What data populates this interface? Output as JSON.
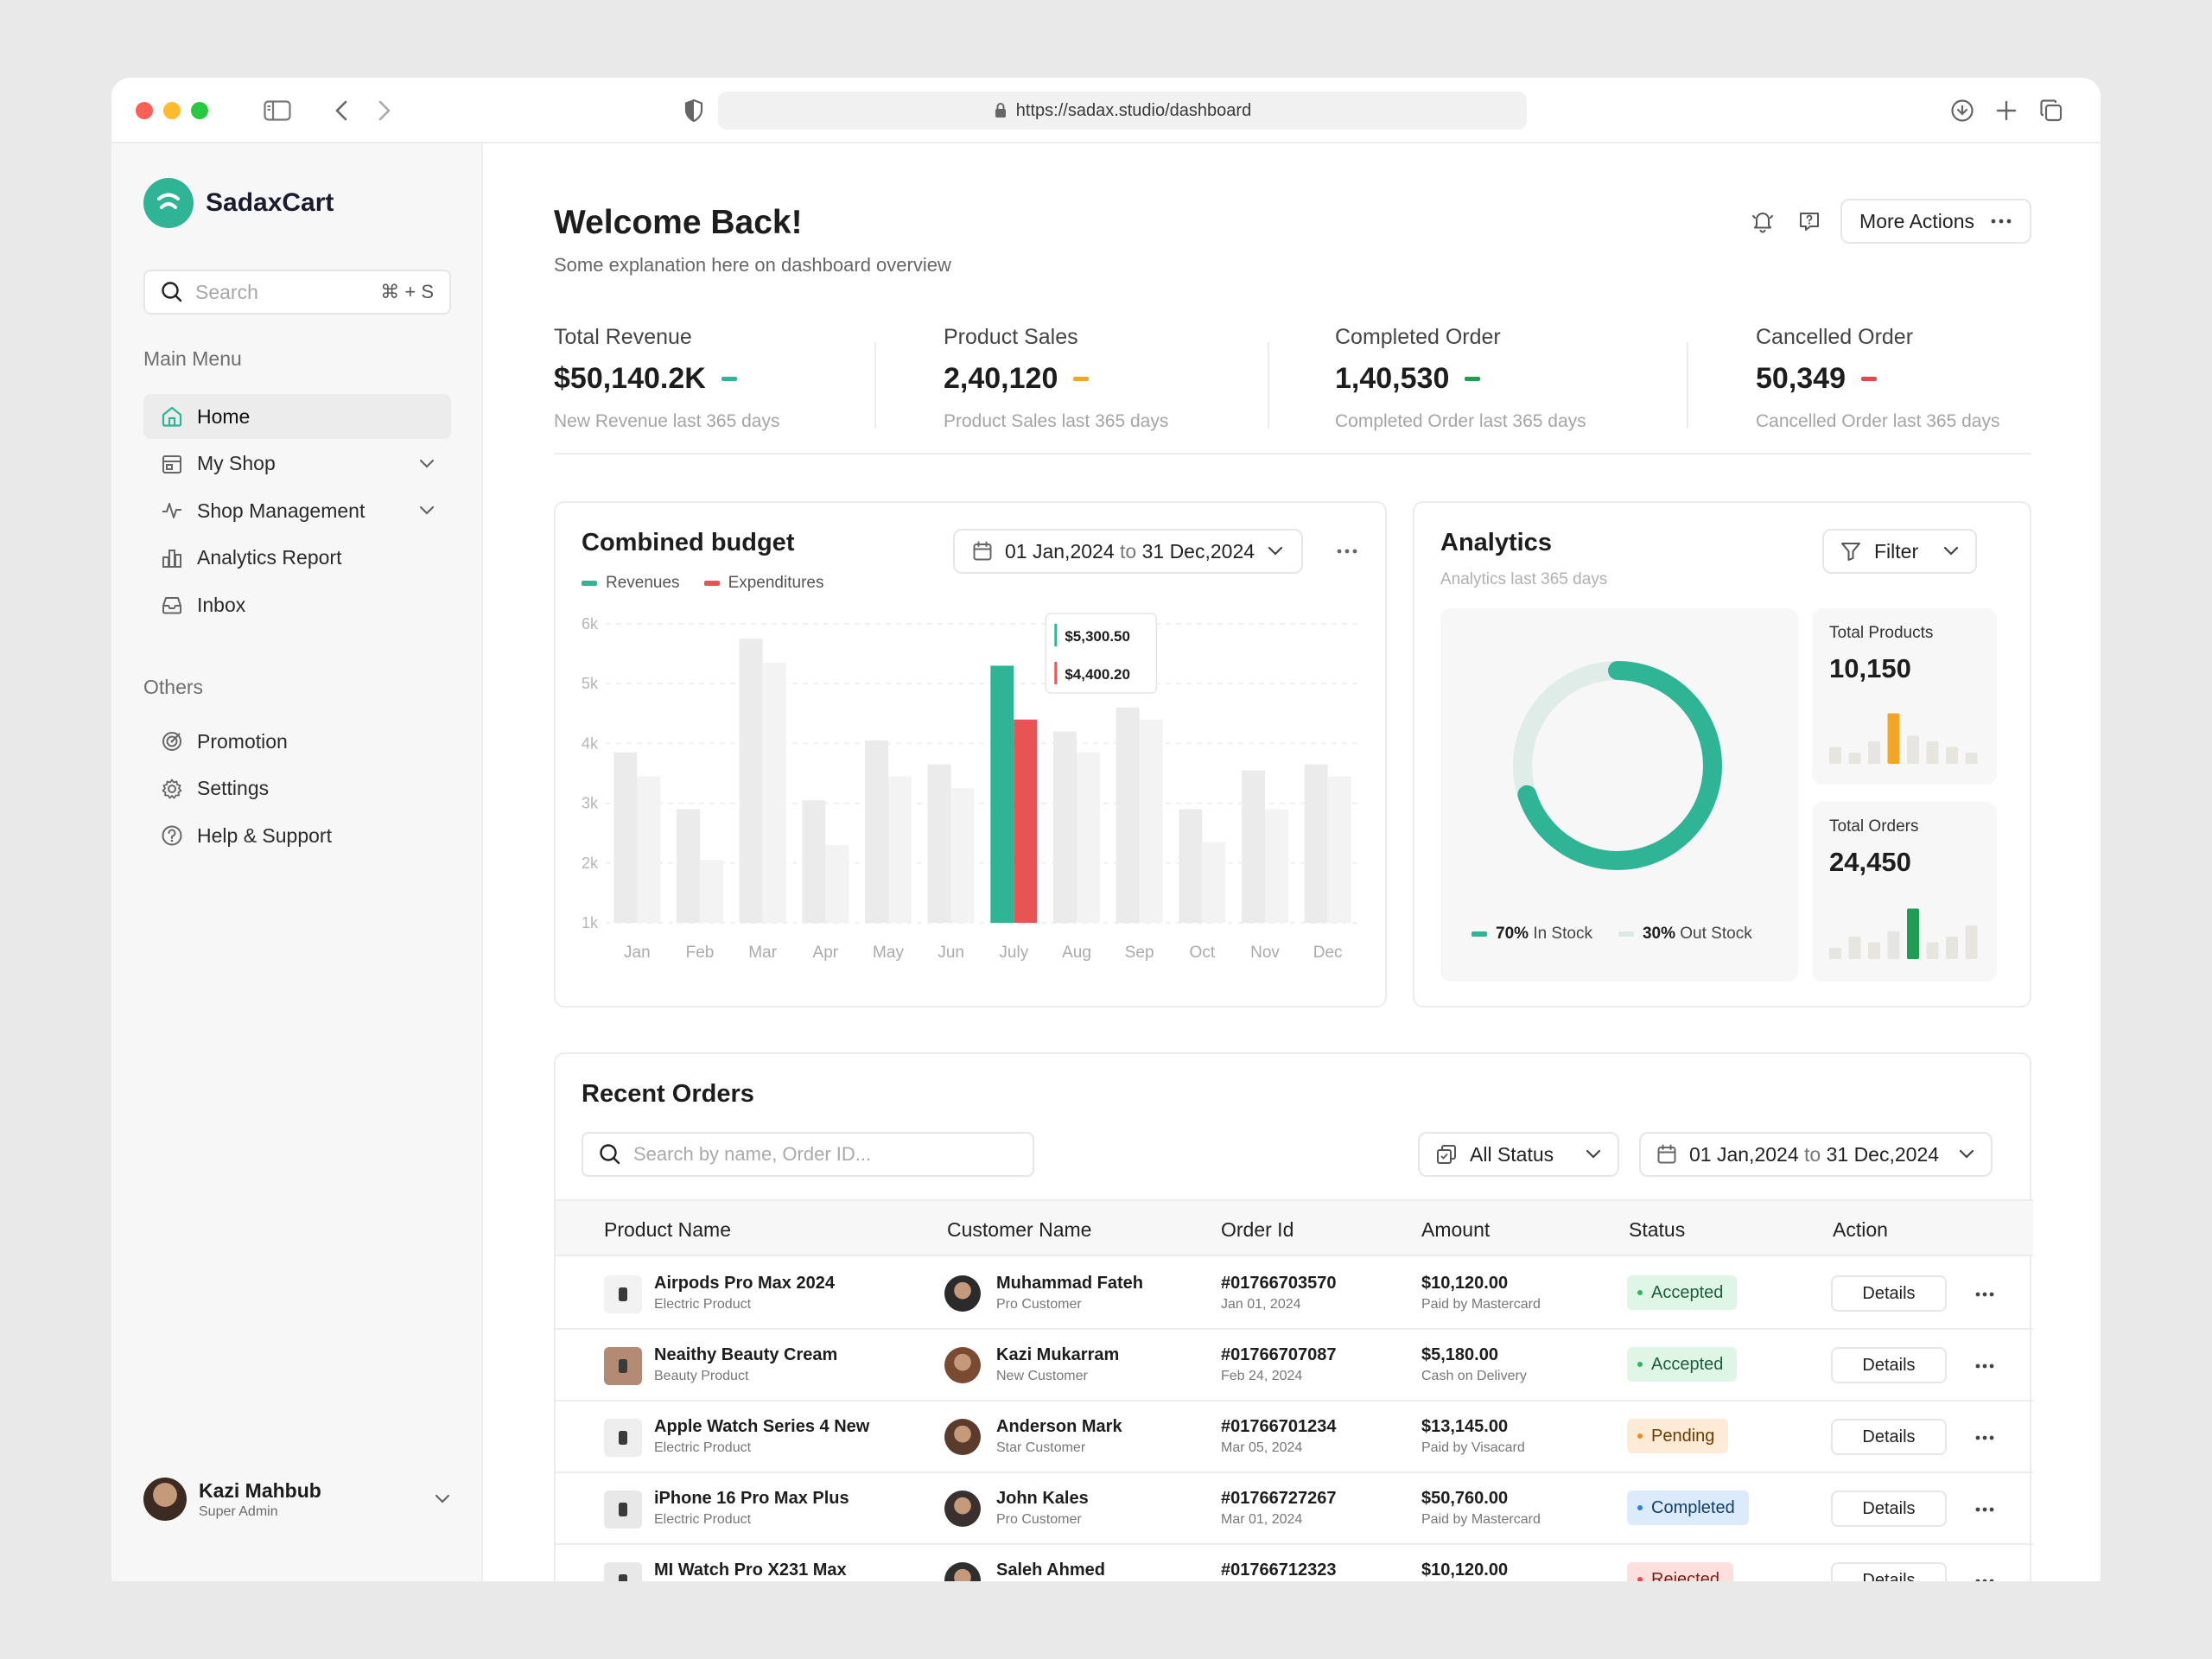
{
  "browser": {
    "url": "https://sadax.studio/dashboard"
  },
  "sidebar": {
    "brand": "SadaxCart",
    "search": {
      "placeholder": "Search",
      "shortcut": "⌘ + S"
    },
    "main_menu_title": "Main Menu",
    "main_menu": [
      {
        "label": "Home",
        "icon": "home-icon",
        "active": true
      },
      {
        "label": "My Shop",
        "icon": "shop-icon",
        "has_submenu": true
      },
      {
        "label": "Shop Management",
        "icon": "activity-icon",
        "has_submenu": true
      },
      {
        "label": "Analytics Report",
        "icon": "analytics-icon"
      },
      {
        "label": "Inbox",
        "icon": "inbox-icon"
      }
    ],
    "others_title": "Others",
    "others_menu": [
      {
        "label": "Promotion",
        "icon": "promotion-icon"
      },
      {
        "label": "Settings",
        "icon": "gear-icon"
      },
      {
        "label": "Help & Support",
        "icon": "help-icon"
      }
    ],
    "profile": {
      "name": "Kazi Mahbub",
      "role": "Super Admin"
    }
  },
  "header": {
    "title": "Welcome Back!",
    "subtitle": "Some explanation here on dashboard overview",
    "more_actions": "More Actions"
  },
  "stats": [
    {
      "label": "Total Revenue",
      "value": "$50,140.2K",
      "note": "New Revenue last 365 days",
      "color": "#2fb596"
    },
    {
      "label": "Product Sales",
      "value": "2,40,120",
      "note": "Product Sales last 365 days",
      "color": "#f5a524"
    },
    {
      "label": "Completed Order",
      "value": "1,40,530",
      "note": "Completed Order last 365 days",
      "color": "#1f9d55"
    },
    {
      "label": "Cancelled Order",
      "value": "50,349",
      "note": "Cancelled Order last 365 days",
      "color": "#e5484d"
    }
  ],
  "budget": {
    "title": "Combined budget",
    "date_from": "01 Jan,2024",
    "date_to_word": "to",
    "date_to": "31 Dec,2024",
    "legend": [
      "Revenues",
      "Expenditures"
    ],
    "tooltip": {
      "revenue": "$5,300.50",
      "expenditure": "$4,400.20"
    }
  },
  "chart_data": {
    "type": "bar",
    "categories": [
      "Jan",
      "Feb",
      "Mar",
      "Apr",
      "May",
      "Jun",
      "July",
      "Aug",
      "Sep",
      "Oct",
      "Nov",
      "Dec"
    ],
    "series": [
      {
        "name": "Revenues",
        "values": [
          3850,
          2900,
          5750,
          3050,
          4050,
          3650,
          5300,
          4200,
          4600,
          2900,
          3550,
          3650
        ]
      },
      {
        "name": "Expenditures",
        "values": [
          3450,
          2050,
          5350,
          2300,
          3450,
          3250,
          4400,
          3850,
          4400,
          2350,
          2900,
          3450
        ]
      }
    ],
    "highlight_index": 6,
    "y_ticks": [
      "1k",
      "2k",
      "3k",
      "4k",
      "5k",
      "6k"
    ],
    "ylim": [
      1000,
      6000
    ],
    "colors": {
      "revenue": "#2fb596",
      "expenditure": "#e85353",
      "muted_revenue": "#ebebeb",
      "muted_expenditure": "#f3f3f3"
    }
  },
  "analytics": {
    "title": "Analytics",
    "subtitle": "Analytics last 365 days",
    "filter_label": "Filter",
    "donut": {
      "in_stock_percent": 70,
      "in_stock_pct_label": "70%",
      "in_stock_label": "In Stock",
      "out_stock_pct_label": "30%",
      "out_stock_label": "Out Stock"
    },
    "total_products": {
      "label": "Total Products",
      "value": "10,150",
      "bars": [
        3,
        2,
        4,
        9,
        5,
        4,
        3,
        2
      ],
      "highlight": 3,
      "color": "#f5a524"
    },
    "total_orders": {
      "label": "Total Orders",
      "value": "24,450",
      "bars": [
        2,
        4,
        3,
        5,
        9,
        3,
        4,
        6
      ],
      "highlight": 4,
      "color": "#1f9d55"
    }
  },
  "orders": {
    "title": "Recent Orders",
    "search_placeholder": "Search by name, Order ID...",
    "status_filter": "All Status",
    "date_from": "01 Jan,2024",
    "date_to_word": "to",
    "date_to": "31 Dec,2024",
    "columns": [
      "Product Name",
      "Customer Name",
      "Order Id",
      "Amount",
      "Status",
      "Action"
    ],
    "details_label": "Details",
    "rows": [
      {
        "product": "Airpods Pro Max 2024",
        "category": "Electric Product",
        "customer": "Muhammad Fateh",
        "ctype": "Pro Customer",
        "order_id": "#01766703570",
        "date": "Jan 01, 2024",
        "amount": "$10,120.00",
        "payment": "Paid by Mastercard",
        "status": "Accepted"
      },
      {
        "product": "Neaithy Beauty Cream",
        "category": "Beauty Product",
        "customer": "Kazi Mukarram",
        "ctype": "New Customer",
        "order_id": "#01766707087",
        "date": "Feb 24, 2024",
        "amount": "$5,180.00",
        "payment": "Cash on Delivery",
        "status": "Accepted"
      },
      {
        "product": "Apple Watch Series 4 New",
        "category": "Electric Product",
        "customer": "Anderson Mark",
        "ctype": "Star Customer",
        "order_id": "#01766701234",
        "date": "Mar 05, 2024",
        "amount": "$13,145.00",
        "payment": "Paid by Visacard",
        "status": "Pending"
      },
      {
        "product": "iPhone 16 Pro Max Plus",
        "category": "Electric Product",
        "customer": "John Kales",
        "ctype": "Pro Customer",
        "order_id": "#01766727267",
        "date": "Mar 01, 2024",
        "amount": "$50,760.00",
        "payment": "Paid by Mastercard",
        "status": "Completed"
      },
      {
        "product": "MI Watch Pro X231 Max",
        "category": "",
        "customer": "Saleh Ahmed",
        "ctype": "",
        "order_id": "#01766712323",
        "date": "",
        "amount": "$10,120.00",
        "payment": "",
        "status": "Rejected"
      }
    ]
  }
}
